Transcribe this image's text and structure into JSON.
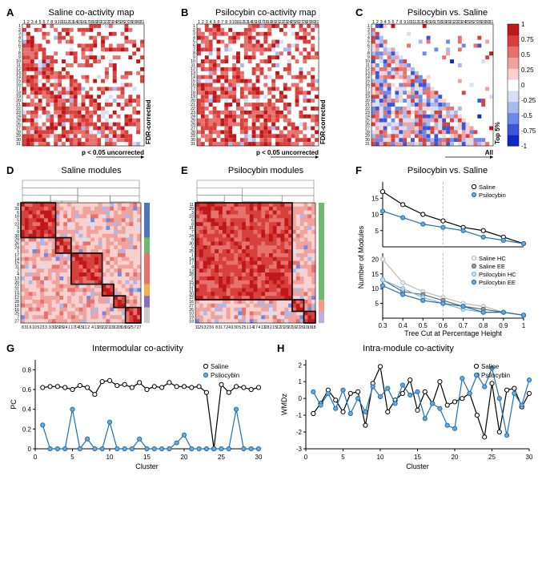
{
  "global": {
    "font_family": "Arial",
    "panel_letter_fontsize": 13,
    "title_fontsize": 11,
    "tick_fontsize": 6.5,
    "axis_label_fontsize": 9,
    "colors": {
      "black": "#000000",
      "saline_line": "#000000",
      "psilocybin_line": "#1f6fb3",
      "saline_marker_fill": "#ffffff",
      "psilocybin_marker_fill": "#6ca9d8",
      "divergent_scale": [
        "#1028c4",
        "#3b57d8",
        "#6e8ae6",
        "#a7b9ef",
        "#d7def7",
        "#ffffff",
        "#f8d1cf",
        "#f0a29e",
        "#e6716d",
        "#d8403c",
        "#c0181a"
      ],
      "module_bar_colors": [
        "#4f74b8",
        "#6fb96e",
        "#e6736b",
        "#f0b050",
        "#8a6fb8",
        "#cccccc"
      ]
    }
  },
  "panel_A": {
    "letter": "A",
    "title": "Saline co-activity map",
    "type": "heatmap-triangular",
    "n": 31,
    "tick_labels": [
      "1",
      "2",
      "3",
      "4",
      "5",
      "6",
      "7",
      "8",
      "9",
      "10",
      "11",
      "12",
      "13",
      "14",
      "15",
      "16",
      "17",
      "18",
      "19",
      "20",
      "21",
      "22",
      "23",
      "24",
      "25",
      "26",
      "27",
      "28",
      "29",
      "30",
      "31"
    ],
    "color_scale_ref": "global.colors.divergent_scale",
    "value_range": [
      -1,
      1
    ],
    "upper_label": "FDR-corrected",
    "lower_label": "p < 0.05 uncorrected",
    "cell_border": "#ffffff",
    "cell_border_width": 0.3,
    "grid_color": "#e8e8e8"
  },
  "panel_B": {
    "letter": "B",
    "title": "Psilocybin co-activity map",
    "type": "heatmap-triangular",
    "n": 31,
    "tick_labels_ref": "panel_A.tick_labels",
    "upper_label": "FDR-corrected",
    "lower_label": "p < 0.05 uncorrected",
    "color_scale_ref": "global.colors.divergent_scale",
    "value_range": [
      -1,
      1
    ]
  },
  "panel_C": {
    "letter": "C",
    "title": "Psilocybin vs. Saline",
    "type": "heatmap-triangular",
    "n": 31,
    "tick_labels_ref": "panel_A.tick_labels",
    "upper_label": "Top 5%",
    "lower_label": "All",
    "color_scale_ref": "global.colors.divergent_scale",
    "value_range": [
      -1,
      1
    ],
    "colorbar": {
      "ticks": [
        -1,
        -0.75,
        -0.5,
        -0.25,
        0,
        0.25,
        0.5,
        0.75,
        1
      ],
      "tick_labels": [
        "-1",
        "-0.75",
        "-0.5",
        "-0.25",
        "0",
        "0.25",
        "0.5",
        "0.75",
        "1"
      ],
      "width": 14,
      "fontsize": 8
    }
  },
  "panel_D": {
    "letter": "D",
    "title": "Saline modules",
    "type": "clustered-heatmap",
    "n": 31,
    "row_order": [
      8,
      31,
      6,
      10,
      5,
      23,
      3,
      9,
      30,
      29,
      26,
      24,
      1,
      17,
      14,
      15,
      11,
      2,
      4,
      13,
      20,
      22,
      21,
      19,
      12,
      28,
      18,
      16,
      25,
      7,
      27
    ],
    "module_boundaries": [
      0,
      9,
      13,
      21,
      24,
      27,
      31
    ],
    "module_colors_ref": "global.colors.module_bar_colors",
    "dendrogram": true,
    "color_scale_ref": "global.colors.divergent_scale"
  },
  "panel_E": {
    "letter": "E",
    "title": "Psilocybin modules",
    "type": "clustered-heatmap",
    "n": 31,
    "row_order": [
      11,
      29,
      3,
      23,
      6,
      8,
      31,
      7,
      24,
      9,
      30,
      5,
      25,
      1,
      14,
      17,
      4,
      13,
      28,
      2,
      15,
      12,
      21,
      20,
      22,
      16,
      27,
      26,
      10,
      19,
      18
    ],
    "module_boundaries": [
      0,
      25,
      28,
      31
    ],
    "module_colors": [
      "#6fb96e",
      "#f39a8a",
      "#bcb0de"
    ],
    "dendrogram": true,
    "color_scale_ref": "global.colors.divergent_scale"
  },
  "panel_F": {
    "letter": "F",
    "title": "Psilocybin vs. Saline",
    "type": "line-stacked",
    "xlabel": "Tree Cut at Percentage Height",
    "ylabel": "Number of Modules",
    "x": [
      0.3,
      0.4,
      0.5,
      0.6,
      0.7,
      0.8,
      0.9,
      1.0
    ],
    "top": {
      "ylim": [
        0,
        20
      ],
      "yticks": [
        5,
        10,
        15
      ],
      "series": [
        {
          "name": "Saline",
          "color": "#000000",
          "marker_fill": "#ffffff",
          "y": [
            17,
            13,
            10,
            8,
            6,
            5,
            3,
            1
          ]
        },
        {
          "name": "Psilocybin",
          "color": "#1f6fb3",
          "marker_fill": "#6ca9d8",
          "y": [
            11,
            9,
            7,
            6,
            5,
            3,
            2,
            1
          ]
        }
      ],
      "vline_x": 0.6,
      "vline_color": "#bbbbbb",
      "vline_dash": "3,2"
    },
    "bottom": {
      "ylim": [
        0,
        22
      ],
      "yticks": [
        5,
        10,
        15,
        20
      ],
      "series": [
        {
          "name": "Saline HC",
          "color": "#bbbbbb",
          "marker_fill": "#eeeeee",
          "y": [
            20,
            12,
            9,
            7,
            5,
            4,
            2,
            1
          ]
        },
        {
          "name": "Saline EE",
          "color": "#666666",
          "marker_fill": "#999999",
          "y": [
            13,
            9,
            8,
            6,
            4,
            3,
            2,
            1
          ]
        },
        {
          "name": "Psilocybin HC",
          "color": "#7db7dd",
          "marker_fill": "#c0dbee",
          "y": [
            13,
            10,
            7,
            5,
            3,
            2,
            2,
            1
          ]
        },
        {
          "name": "Psilocybin EE",
          "color": "#1f6fb3",
          "marker_fill": "#6ca9d8",
          "y": [
            11,
            8,
            6,
            5,
            4,
            2,
            2,
            1
          ]
        }
      ],
      "vline_x": 0.6
    },
    "marker_radius": 2.6,
    "line_width": 1.2
  },
  "panel_G": {
    "letter": "G",
    "title": "Intermodular co-activity",
    "type": "line",
    "xlabel": "Cluster",
    "ylabel": "PC",
    "xlim": [
      0,
      30
    ],
    "xticks": [
      0,
      5,
      10,
      15,
      20,
      25,
      30
    ],
    "ylim": [
      0,
      0.9
    ],
    "yticks": [
      0,
      0.2,
      0.4,
      0.6,
      0.8
    ],
    "series": [
      {
        "name": "Saline",
        "color": "#000000",
        "marker_fill": "#ffffff",
        "x": [
          1,
          2,
          3,
          4,
          5,
          6,
          7,
          8,
          9,
          10,
          11,
          12,
          13,
          14,
          15,
          16,
          17,
          18,
          19,
          20,
          21,
          22,
          23,
          24,
          25,
          26,
          27,
          28,
          29,
          30
        ],
        "y": [
          0.62,
          0.63,
          0.63,
          0.62,
          0.6,
          0.64,
          0.62,
          0.55,
          0.68,
          0.69,
          0.64,
          0.65,
          0.62,
          0.67,
          0.6,
          0.63,
          0.62,
          0.67,
          0.63,
          0.63,
          0.62,
          0.63,
          0.57,
          0.0,
          0.65,
          0.57,
          0.63,
          0.62,
          0.6,
          0.62
        ]
      },
      {
        "name": "Psilocybin",
        "color": "#1f6fb3",
        "marker_fill": "#6ca9d8",
        "x": [
          1,
          2,
          3,
          4,
          5,
          6,
          7,
          8,
          9,
          10,
          11,
          12,
          13,
          14,
          15,
          16,
          17,
          18,
          19,
          20,
          21,
          22,
          23,
          24,
          25,
          26,
          27,
          28,
          29,
          30
        ],
        "y": [
          0.24,
          0.0,
          0.0,
          0.0,
          0.4,
          0.0,
          0.1,
          0.0,
          0.0,
          0.27,
          0.0,
          0.0,
          0.0,
          0.1,
          0.0,
          0.0,
          0.0,
          0.0,
          0.06,
          0.14,
          0.0,
          0.0,
          0.0,
          0.0,
          0.0,
          0.0,
          0.4,
          0.0,
          0.0,
          0.0
        ]
      }
    ],
    "legend_pos": "top-right",
    "marker_radius": 2.6,
    "line_width": 1.2
  },
  "panel_H": {
    "letter": "H",
    "title": "Intra-module co-activity",
    "type": "line",
    "xlabel": "Cluster",
    "ylabel": "WMDz",
    "xlim": [
      0,
      30
    ],
    "xticks": [
      0,
      5,
      10,
      15,
      20,
      25,
      30
    ],
    "ylim": [
      -3,
      2.3
    ],
    "yticks": [
      -3,
      -2,
      -1,
      0,
      1,
      2
    ],
    "series": [
      {
        "name": "Saline",
        "color": "#000000",
        "marker_fill": "#ffffff",
        "x": [
          1,
          2,
          3,
          4,
          5,
          6,
          7,
          8,
          9,
          10,
          11,
          12,
          13,
          14,
          15,
          16,
          17,
          18,
          19,
          20,
          21,
          22,
          23,
          24,
          25,
          26,
          27,
          28,
          29,
          30
        ],
        "y": [
          -0.9,
          -0.3,
          0.5,
          -0.1,
          -0.8,
          0.3,
          0.4,
          -1.6,
          0.9,
          1.9,
          -0.8,
          -0.1,
          0.3,
          1.1,
          -0.7,
          0.4,
          -0.3,
          1.0,
          -0.4,
          -0.2,
          0.0,
          0.3,
          -1.0,
          -2.3,
          0.9,
          -2.0,
          0.5,
          0.6,
          -0.5,
          0.3
        ]
      },
      {
        "name": "Psilocybin",
        "color": "#1f6fb3",
        "marker_fill": "#6ca9d8",
        "x": [
          1,
          2,
          3,
          4,
          5,
          6,
          7,
          8,
          9,
          10,
          11,
          12,
          13,
          14,
          15,
          16,
          17,
          18,
          19,
          20,
          21,
          22,
          23,
          24,
          25,
          26,
          27,
          28,
          29,
          30
        ],
        "y": [
          0.4,
          -0.4,
          0.3,
          -0.6,
          0.5,
          -0.9,
          0.0,
          -0.8,
          0.7,
          0.1,
          0.6,
          -0.3,
          0.8,
          0.2,
          0.4,
          -1.2,
          -0.3,
          -0.6,
          -1.6,
          -1.8,
          1.2,
          0.3,
          1.4,
          0.7,
          1.8,
          0.0,
          -2.2,
          0.3,
          -0.4,
          1.1
        ]
      }
    ],
    "marker_radius": 2.6,
    "line_width": 1.2
  }
}
